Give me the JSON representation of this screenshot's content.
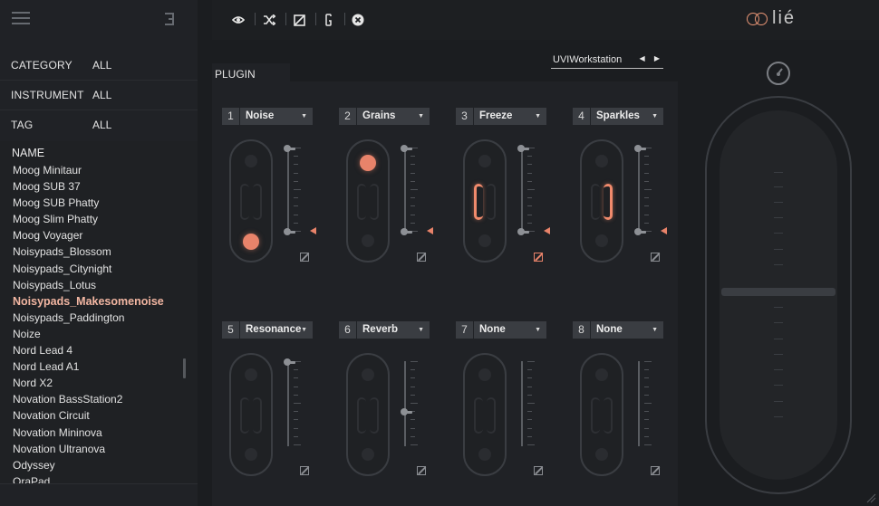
{
  "sidebar": {
    "filters": [
      {
        "key": "CATEGORY",
        "value": "ALL"
      },
      {
        "key": "INSTRUMENT",
        "value": "ALL"
      },
      {
        "key": "TAG",
        "value": "ALL"
      }
    ],
    "list_header": "NAME",
    "items": [
      "Moog Minitaur",
      "Moog SUB 37",
      "Moog SUB Phatty",
      "Moog Slim Phatty",
      "Moog Voyager",
      "Noisypads_Blossom",
      "Noisypads_Citynight",
      "Noisypads_Lotus",
      "Noisypads_Makesomenoise",
      "Noisypads_Paddington",
      "Noize",
      "Nord Lead 4",
      "Nord Lead A1",
      "Nord X2",
      "Novation BassStation2",
      "Novation Circuit",
      "Novation Mininova",
      "Novation Ultranova",
      "Odyssey",
      "OraPad"
    ],
    "selected_item": "Noisypads_Makesomenoise"
  },
  "toolbar": {
    "icons": [
      "eye-icon",
      "shuffle-icon",
      "bypass-icon",
      "clip-icon",
      "close-icon"
    ]
  },
  "logo": {
    "text": "lié",
    "accent": "#e89576"
  },
  "plugin": {
    "tab_label": "PLUGIN",
    "host_label": "UVIWorkstation"
  },
  "slots": [
    {
      "num": "1",
      "name": "Noise",
      "ball": "bottom",
      "fader": "full",
      "bypass_active": false
    },
    {
      "num": "2",
      "name": "Grains",
      "ball": "top",
      "fader": "full",
      "bypass_active": false
    },
    {
      "num": "3",
      "name": "Freeze",
      "ball": "left",
      "fader": "full",
      "bypass_active": true
    },
    {
      "num": "4",
      "name": "Sparkles",
      "ball": "right",
      "fader": "full",
      "bypass_active": false
    },
    {
      "num": "5",
      "name": "Resonance",
      "ball": "none",
      "fader": "top",
      "bypass_active": false
    },
    {
      "num": "6",
      "name": "Reverb",
      "ball": "none",
      "fader": "mid",
      "bypass_active": false
    },
    {
      "num": "7",
      "name": "None",
      "ball": "none",
      "fader": "empty",
      "bypass_active": false
    },
    {
      "num": "8",
      "name": "None",
      "ball": "none",
      "fader": "empty",
      "bypass_active": false
    }
  ],
  "colors": {
    "accent": "#e8836a",
    "panel": "#202226"
  }
}
